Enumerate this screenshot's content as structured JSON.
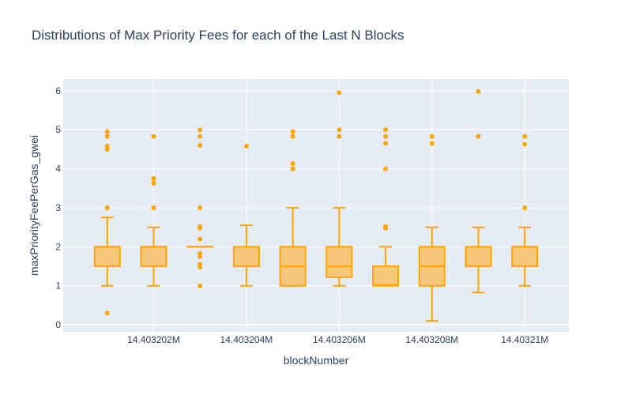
{
  "chart_data": {
    "type": "box",
    "title": "Distributions of Max Priority Fees for each of the Last N Blocks",
    "xlabel": "blockNumber",
    "ylabel": "maxPriorityFeePerGas_gwei",
    "xlim": [
      14403200.05,
      14403210.95
    ],
    "ylim": [
      -0.18,
      6.3
    ],
    "grid": true,
    "legend": "none",
    "x_ticks": [
      {
        "value": 14403202,
        "label": "14.403202M"
      },
      {
        "value": 14403204,
        "label": "14.403204M"
      },
      {
        "value": 14403206,
        "label": "14.403206M"
      },
      {
        "value": 14403208,
        "label": "14.403208M"
      },
      {
        "value": 14403210,
        "label": "14.40321M"
      }
    ],
    "y_ticks": [
      0,
      1,
      2,
      3,
      4,
      5,
      6
    ],
    "boxes": [
      {
        "x": 14403201,
        "min": 1.0,
        "q1": 1.5,
        "median": 2.0,
        "q3": 2.0,
        "max": 2.75,
        "outliers": [
          0.3,
          3.0,
          4.5,
          4.58,
          4.83,
          4.95
        ]
      },
      {
        "x": 14403202,
        "min": 1.0,
        "q1": 1.5,
        "median": 2.0,
        "q3": 2.0,
        "max": 2.5,
        "outliers": [
          3.0,
          3.63,
          3.75,
          4.83
        ]
      },
      {
        "x": 14403203,
        "min": 2.0,
        "q1": 2.0,
        "median": 2.0,
        "q3": 2.0,
        "max": 2.0,
        "outliers": [
          1.0,
          1.48,
          1.55,
          1.75,
          1.83,
          2.2,
          2.48,
          2.52,
          3.0,
          4.6,
          4.83,
          5.0
        ]
      },
      {
        "x": 14403204,
        "min": 1.0,
        "q1": 1.5,
        "median": 1.5,
        "q3": 2.0,
        "max": 2.55,
        "outliers": [
          4.58
        ]
      },
      {
        "x": 14403205,
        "min": 1.0,
        "q1": 1.0,
        "median": 1.5,
        "q3": 2.0,
        "max": 3.0,
        "outliers": [
          4.0,
          4.13,
          4.83,
          4.95
        ]
      },
      {
        "x": 14403206,
        "min": 1.0,
        "q1": 1.22,
        "median": 1.5,
        "q3": 2.0,
        "max": 3.0,
        "outliers": [
          4.83,
          5.0,
          5.95
        ]
      },
      {
        "x": 14403207,
        "min": 1.0,
        "q1": 1.0,
        "median": 1.02,
        "q3": 1.5,
        "max": 2.0,
        "outliers": [
          2.48,
          2.52,
          4.0,
          4.65,
          4.83,
          5.0
        ]
      },
      {
        "x": 14403208,
        "min": 0.1,
        "q1": 1.0,
        "median": 1.5,
        "q3": 2.0,
        "max": 2.5,
        "outliers": [
          4.65,
          4.83
        ]
      },
      {
        "x": 14403209,
        "min": 0.83,
        "q1": 1.5,
        "median": 1.5,
        "q3": 2.0,
        "max": 2.5,
        "outliers": [
          4.83,
          5.98
        ]
      },
      {
        "x": 14403210,
        "min": 1.0,
        "q1": 1.5,
        "median": 2.0,
        "q3": 2.0,
        "max": 2.5,
        "outliers": [
          3.0,
          4.63,
          4.83
        ]
      }
    ],
    "colors": {
      "box_line": "#FFA500",
      "box_fill": "#F4C77A",
      "plot_bg": "#E5ECF6",
      "grid": "#ffffff",
      "text": "#2A3F5F"
    }
  }
}
